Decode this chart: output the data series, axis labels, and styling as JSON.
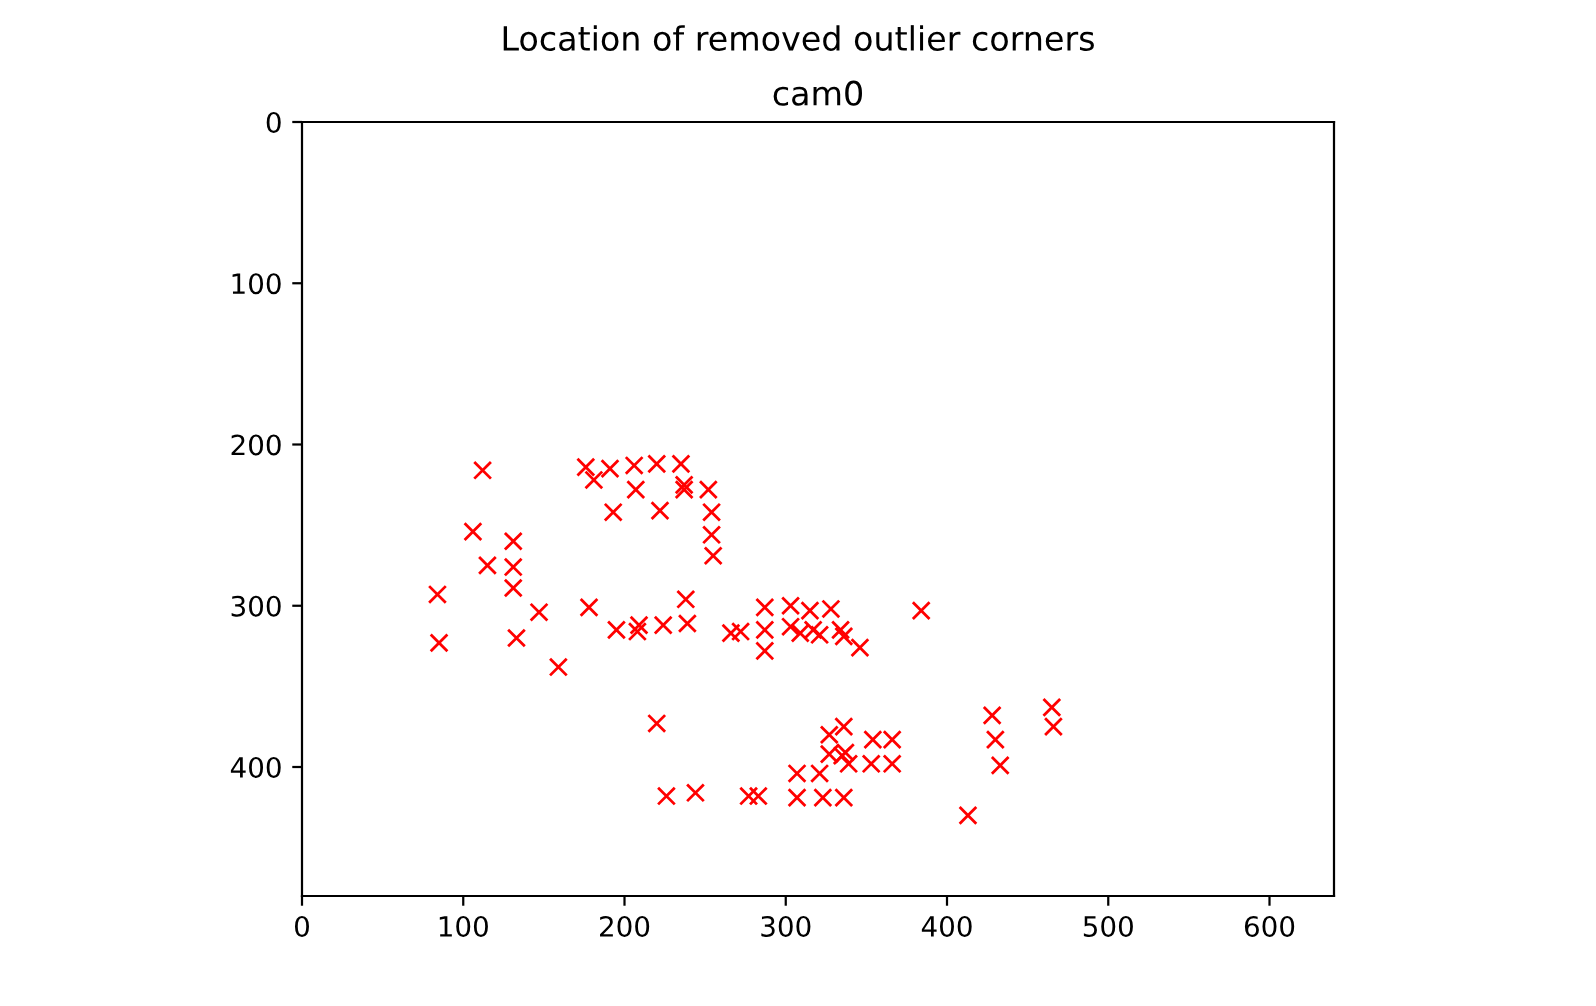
{
  "chart_data": {
    "type": "scatter",
    "title": "Location of removed outlier corners",
    "subtitle": "cam0",
    "marker": "cross",
    "grid": false,
    "xlim": [
      0,
      640
    ],
    "ylim": [
      480,
      0
    ],
    "xticks": [
      0,
      100,
      200,
      300,
      400,
      500,
      600
    ],
    "yticks": [
      0,
      100,
      200,
      300,
      400
    ],
    "series": [
      {
        "color": "#ff0000",
        "x": [
          84,
          85,
          112,
          106,
          115,
          131,
          131,
          131,
          133,
          147,
          159,
          176,
          181,
          191,
          193,
          206,
          207,
          220,
          222,
          235,
          237,
          237,
          252,
          254,
          254,
          255,
          178,
          195,
          208,
          209,
          224,
          238,
          239,
          266,
          272,
          287,
          287,
          287,
          303,
          303,
          309,
          315,
          317,
          321,
          328,
          334,
          336,
          346,
          384,
          220,
          226,
          244,
          277,
          283,
          307,
          307,
          323,
          321,
          327,
          327,
          336,
          335,
          339,
          336,
          354,
          353,
          366,
          366,
          337,
          413,
          428,
          430,
          433,
          465,
          466
        ],
        "values": [
          293,
          323,
          216,
          254,
          275,
          260,
          276,
          289,
          320,
          304,
          338,
          214,
          222,
          215,
          242,
          213,
          228,
          212,
          241,
          212,
          228,
          225,
          228,
          242,
          256,
          269,
          301,
          315,
          316,
          312,
          312,
          296,
          311,
          317,
          316,
          301,
          315,
          328,
          300,
          313,
          317,
          303,
          315,
          318,
          302,
          315,
          319,
          326,
          303,
          373,
          418,
          416,
          418,
          418,
          404,
          419,
          419,
          404,
          392,
          380,
          375,
          393,
          398,
          419,
          383,
          398,
          383,
          398,
          391,
          430,
          368,
          383,
          399,
          363,
          375
        ]
      }
    ]
  }
}
